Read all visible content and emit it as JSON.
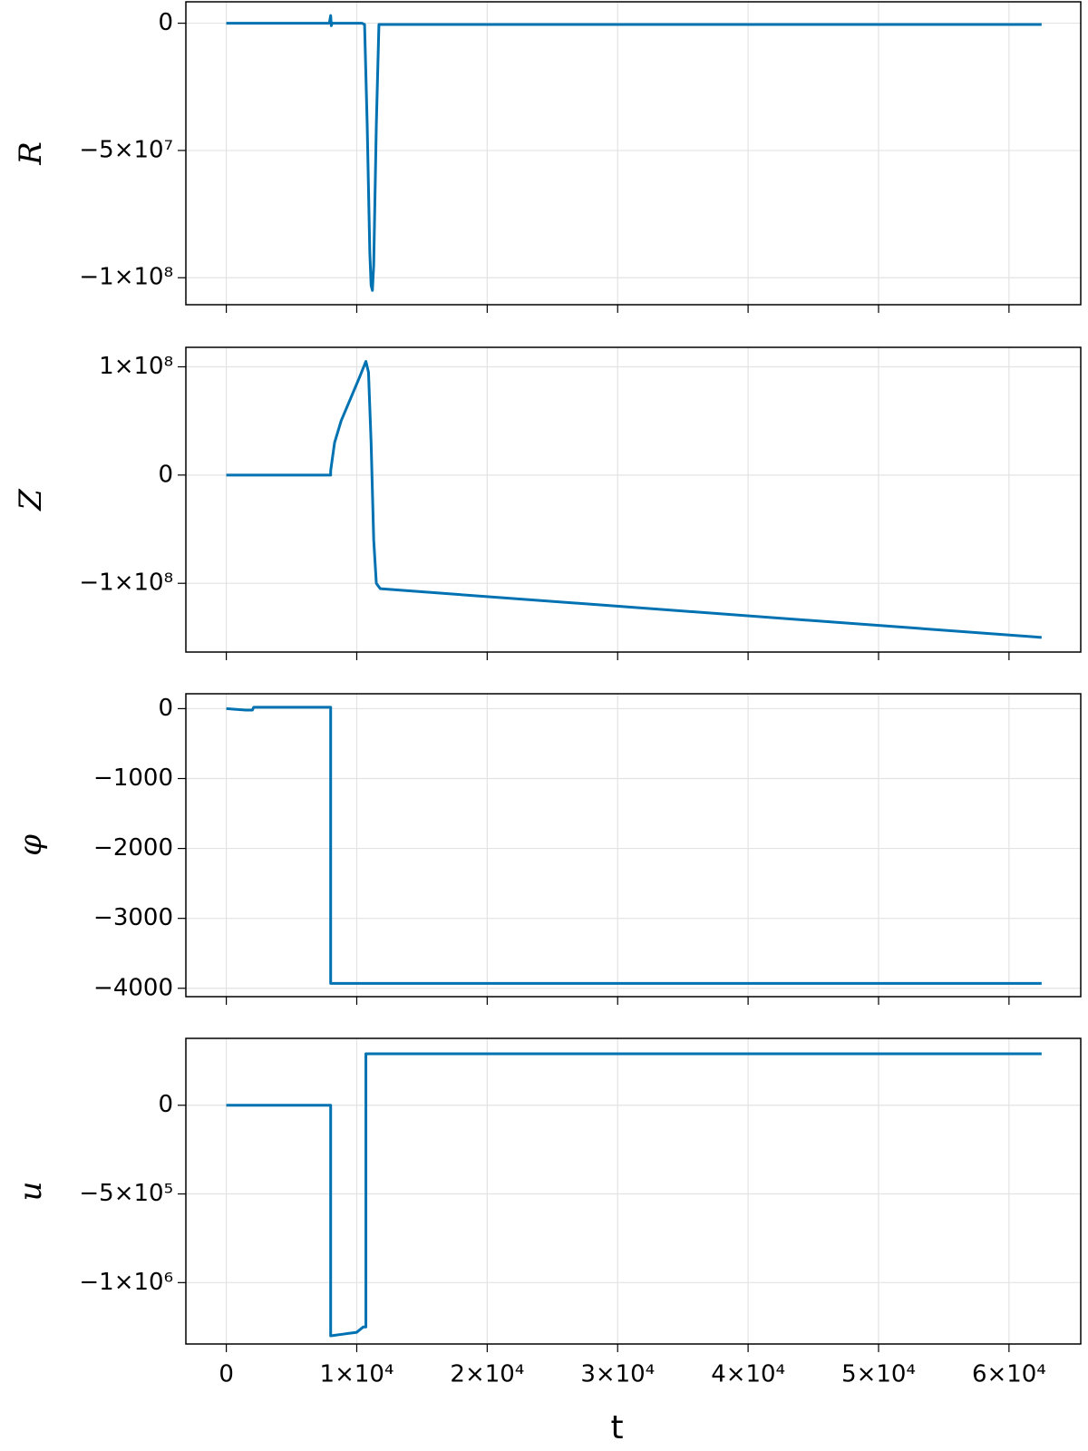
{
  "chart_data": [
    {
      "type": "line",
      "ylabel": "R",
      "color": "#0072b2",
      "grid": true,
      "xlim": [
        -3100,
        65500
      ],
      "ylim": [
        -110600000,
        8400000
      ],
      "yticks": [
        {
          "value": -100000000,
          "label": "−1×10⁸"
        },
        {
          "value": -50000000,
          "label": "−5×10⁷"
        },
        0
      ],
      "x": [
        0,
        7900,
        8000,
        8050,
        8100,
        10400,
        10600,
        10800,
        11000,
        11100,
        11200,
        11300,
        11500,
        11700,
        62500
      ],
      "values": [
        0,
        0,
        3000000,
        -1000000,
        0,
        0,
        -500000,
        -40000000,
        -90000000,
        -103000000,
        -105000000,
        -95000000,
        -40000000,
        -500000,
        -500000
      ]
    },
    {
      "type": "line",
      "ylabel": "Z",
      "color": "#0072b2",
      "grid": true,
      "xlim": [
        -3100,
        65500
      ],
      "ylim": [
        -163500000,
        118000000
      ],
      "yticks": [
        {
          "value": -100000000,
          "label": "−1×10⁸"
        },
        0,
        {
          "value": 100000000,
          "label": "1×10⁸"
        }
      ],
      "x": [
        0,
        8000,
        8000,
        8300,
        8800,
        9500,
        10200,
        10700,
        10900,
        11100,
        11300,
        11500,
        11800,
        62500
      ],
      "values": [
        0,
        0,
        4000000,
        30000000,
        50000000,
        70000000,
        90000000,
        105000000,
        95000000,
        30000000,
        -60000000,
        -100000000,
        -105000000,
        -150000000
      ]
    },
    {
      "type": "line",
      "ylabel": "φ",
      "color": "#0072b2",
      "grid": true,
      "xlim": [
        -3100,
        65500
      ],
      "ylim": [
        -4120,
        213
      ],
      "yticks": [
        {
          "value": -4000,
          "label": "−4000"
        },
        {
          "value": -3000,
          "label": "−3000"
        },
        {
          "value": -2000,
          "label": "−2000"
        },
        {
          "value": -1000,
          "label": "−1000"
        },
        0
      ],
      "x": [
        0,
        1500,
        2000,
        2100,
        8000,
        8000,
        62500
      ],
      "values": [
        0,
        -20,
        -20,
        20,
        20,
        -3930,
        -3930
      ]
    },
    {
      "type": "line",
      "ylabel": "u",
      "xlabel": "t",
      "color": "#0072b2",
      "grid": true,
      "xlim": [
        -3100,
        65500
      ],
      "ylim": [
        -1346000,
        377000
      ],
      "yticks": [
        {
          "value": -1000000,
          "label": "−1×10⁶"
        },
        {
          "value": -500000,
          "label": "−5×10⁵"
        },
        0
      ],
      "xticks": [
        0,
        {
          "value": 10000,
          "label": "1×10⁴"
        },
        {
          "value": 20000,
          "label": "2×10⁴"
        },
        {
          "value": 30000,
          "label": "3×10⁴"
        },
        {
          "value": 40000,
          "label": "4×10⁴"
        },
        {
          "value": 50000,
          "label": "5×10⁴"
        },
        {
          "value": 60000,
          "label": "6×10⁴"
        }
      ],
      "x": [
        0,
        8000,
        8000,
        9000,
        10000,
        10500,
        10700,
        10700,
        62500
      ],
      "values": [
        0,
        0,
        -1300000,
        -1290000,
        -1280000,
        -1250000,
        -1250000,
        290000,
        290000
      ]
    }
  ]
}
